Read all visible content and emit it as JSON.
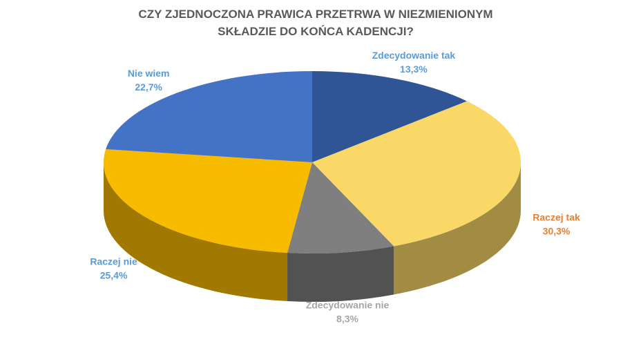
{
  "chart_data": {
    "type": "pie3d",
    "title": "CZY ZJEDNOCZONA PRAWICA PRZETRWA W NIEZMIENIONYM SKŁADZIE DO KOŃCA KADENCJI?",
    "categories": [
      "Zdecydowanie tak",
      "Raczej tak",
      "Zdecydowanie nie",
      "Raczej nie",
      "Nie wiem"
    ],
    "values": [
      13.3,
      30.3,
      8.3,
      25.4,
      22.7
    ],
    "value_labels": [
      "13,3%",
      "30,3%",
      "8,3%",
      "25,4%",
      "22,7%"
    ],
    "colors": [
      "#2f5597",
      "#f9d868",
      "#7f7f7f",
      "#f7bb00",
      "#4472c4"
    ],
    "label_colors": [
      "#5b9bd5",
      "#ed7d31",
      "#a5a5a5",
      "#5b9bd5",
      "#5b9bd5"
    ]
  }
}
